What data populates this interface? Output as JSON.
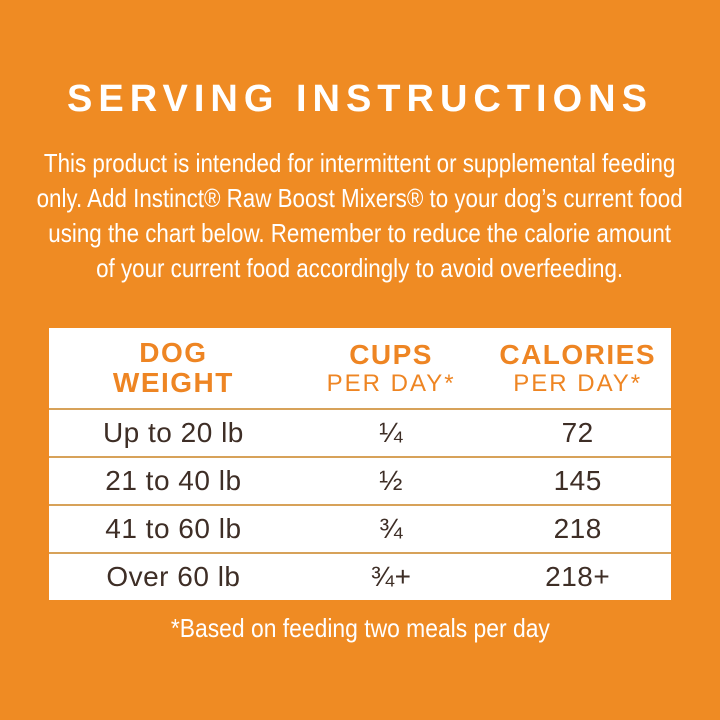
{
  "colors": {
    "background": "#ef8b23",
    "heading_text": "#ffffff",
    "body_text": "#ffffff",
    "table_background": "#ffffff",
    "table_header_text": "#ee8523",
    "table_row_text": "#3e2e26",
    "table_divider": "#d7a259"
  },
  "heading": "SERVING INSTRUCTIONS",
  "intro_lines": [
    "This product is intended for intermittent or supplemental feeding",
    "only. Add Instinct® Raw Boost Mixers® to your dog’s current food",
    "using the chart below. Remember to reduce the calorie amount",
    "of your current food accordingly to avoid overfeeding."
  ],
  "table": {
    "headers": [
      {
        "line1": "DOG",
        "line2": "WEIGHT"
      },
      {
        "line1": "CUPS",
        "line2": "PER DAY*"
      },
      {
        "line1": "CALORIES",
        "line2": "PER DAY*"
      }
    ],
    "rows": [
      {
        "weight": "Up to 20 lb",
        "cups": "¼",
        "calories": "72"
      },
      {
        "weight": "21 to 40 lb",
        "cups": "½",
        "calories": "145"
      },
      {
        "weight": "41 to 60 lb",
        "cups": "¾",
        "calories": "218"
      },
      {
        "weight": "Over 60 lb",
        "cups": "¾+",
        "calories": "218+"
      }
    ]
  },
  "footnote": "*Based on feeding two meals per day",
  "chart_data": {
    "type": "table",
    "title": "SERVING INSTRUCTIONS",
    "columns": [
      "DOG WEIGHT",
      "CUPS PER DAY*",
      "CALORIES PER DAY*"
    ],
    "rows": [
      [
        "Up to 20 lb",
        "1/4",
        "72"
      ],
      [
        "21 to 40 lb",
        "1/2",
        "145"
      ],
      [
        "41 to 60 lb",
        "3/4",
        "218"
      ],
      [
        "Over 60 lb",
        "3/4+",
        "218+"
      ]
    ],
    "footnote": "*Based on feeding two meals per day"
  }
}
